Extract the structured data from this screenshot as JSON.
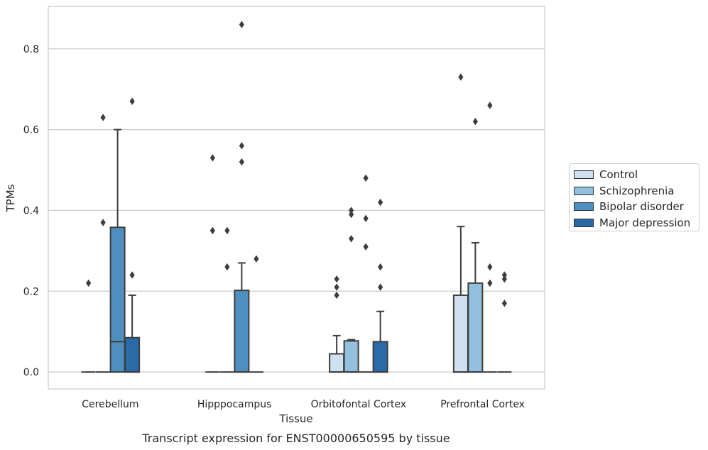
{
  "chart_data": {
    "type": "box",
    "title": "Transcript expression for ENST00000650595 by tissue",
    "xlabel": "Tissue",
    "ylabel": "TPMs",
    "ylim": [
      -0.042,
      0.905
    ],
    "yticks": [
      "0.0",
      "0.2",
      "0.4",
      "0.6",
      "0.8"
    ],
    "ytick_values": [
      0.0,
      0.2,
      0.4,
      0.6,
      0.8
    ],
    "categories": [
      "Cerebellum",
      "Hipppocampus",
      "Orbitofontal Cortex",
      "Prefrontal Cortex"
    ],
    "grid": "horizontal",
    "legend_position": "right",
    "series": [
      {
        "name": "Control",
        "color": "#cfe1f1",
        "boxes": [
          {
            "q1": 0,
            "median": 0,
            "q3": 0,
            "whisker_low": 0,
            "whisker_high": 0,
            "outliers": [
              0.22
            ]
          },
          {
            "q1": 0,
            "median": 0,
            "q3": 0,
            "whisker_low": 0,
            "whisker_high": 0,
            "outliers": [
              0.53,
              0.35
            ]
          },
          {
            "q1": 0,
            "median": 0,
            "q3": 0.045,
            "whisker_low": 0,
            "whisker_high": 0.09,
            "outliers": [
              0.23,
              0.21,
              0.19
            ]
          },
          {
            "q1": 0,
            "median": 0,
            "q3": 0.19,
            "whisker_low": 0,
            "whisker_high": 0.36,
            "outliers": [
              0.73
            ]
          }
        ]
      },
      {
        "name": "Schizophrenia",
        "color": "#93c0dc",
        "boxes": [
          {
            "q1": 0,
            "median": 0,
            "q3": 0,
            "whisker_low": 0,
            "whisker_high": 0,
            "outliers": [
              0.63,
              0.37
            ]
          },
          {
            "q1": 0,
            "median": 0,
            "q3": 0,
            "whisker_low": 0,
            "whisker_high": 0,
            "outliers": [
              0.35,
              0.26
            ]
          },
          {
            "q1": 0,
            "median": 0,
            "q3": 0.077,
            "whisker_low": 0,
            "whisker_high": 0.08,
            "outliers": [
              0.4,
              0.39,
              0.33
            ]
          },
          {
            "q1": 0,
            "median": 0,
            "q3": 0.22,
            "whisker_low": 0,
            "whisker_high": 0.32,
            "outliers": [
              0.62
            ]
          }
        ]
      },
      {
        "name": "Bipolar disorder",
        "color": "#4f8fc0",
        "boxes": [
          {
            "q1": 0,
            "median": 0.075,
            "q3": 0.358,
            "whisker_low": 0,
            "whisker_high": 0.6,
            "outliers": []
          },
          {
            "q1": 0,
            "median": 0,
            "q3": 0.202,
            "whisker_low": 0,
            "whisker_high": 0.27,
            "outliers": [
              0.86,
              0.56,
              0.52
            ]
          },
          {
            "q1": 0,
            "median": 0,
            "q3": 0,
            "whisker_low": 0,
            "whisker_high": 0,
            "outliers": [
              0.48,
              0.38,
              0.31
            ]
          },
          {
            "q1": 0,
            "median": 0,
            "q3": 0,
            "whisker_low": 0,
            "whisker_high": 0,
            "outliers": [
              0.66,
              0.26,
              0.22
            ]
          }
        ]
      },
      {
        "name": "Major depression",
        "color": "#2a6aa8",
        "boxes": [
          {
            "q1": 0,
            "median": 0,
            "q3": 0.085,
            "whisker_low": 0,
            "whisker_high": 0.19,
            "outliers": [
              0.67,
              0.24
            ]
          },
          {
            "q1": 0,
            "median": 0,
            "q3": 0,
            "whisker_low": 0,
            "whisker_high": 0,
            "outliers": [
              0.28
            ]
          },
          {
            "q1": 0,
            "median": 0,
            "q3": 0.075,
            "whisker_low": 0,
            "whisker_high": 0.15,
            "outliers": [
              0.42,
              0.26,
              0.21
            ]
          },
          {
            "q1": 0,
            "median": 0,
            "q3": 0,
            "whisker_low": 0,
            "whisker_high": 0,
            "outliers": [
              0.24,
              0.23,
              0.17
            ]
          }
        ]
      }
    ]
  }
}
